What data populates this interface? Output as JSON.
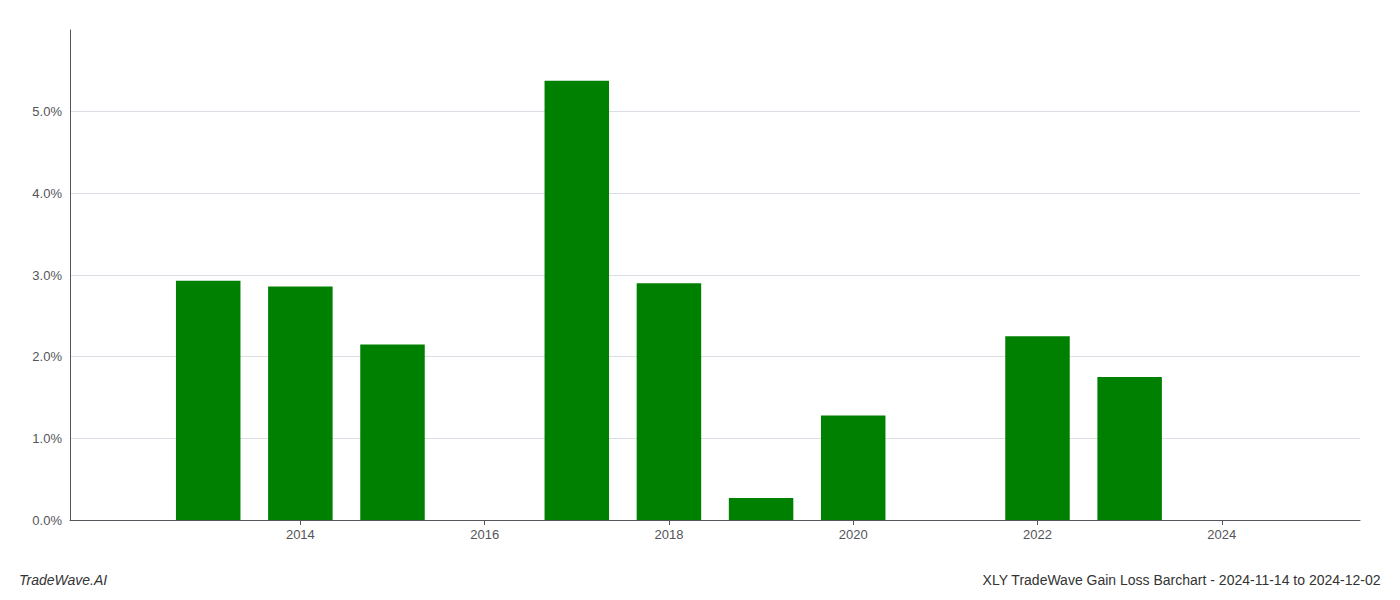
{
  "chart_data": {
    "type": "bar",
    "title": "XLY TradeWave Gain Loss Barchart - 2024-11-14 to 2024-12-02",
    "annotations": [
      "TradeWave.AI"
    ],
    "x": [
      2013,
      2014,
      2015,
      2017,
      2018,
      2019,
      2020,
      2022,
      2023
    ],
    "values": [
      0.0293,
      0.0286,
      0.0215,
      0.0538,
      0.029,
      0.0027,
      0.0128,
      0.0225,
      0.0175
    ],
    "color": "#008000",
    "xlim": [
      2011.5,
      2025.5
    ],
    "xticks": [
      2014,
      2016,
      2018,
      2020,
      2022,
      2024
    ],
    "ylim": [
      0.0,
      0.06
    ],
    "yticks": [
      {
        "value": 0.0,
        "label": "0.0%"
      },
      {
        "value": 0.01,
        "label": "1.0%"
      },
      {
        "value": 0.02,
        "label": "2.0%"
      },
      {
        "value": 0.03,
        "label": "3.0%"
      },
      {
        "value": 0.04,
        "label": "4.0%"
      },
      {
        "value": 0.05,
        "label": "5.0%"
      }
    ],
    "grid": true
  }
}
